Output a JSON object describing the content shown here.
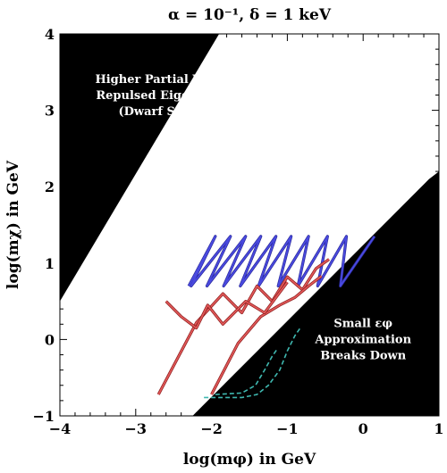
{
  "chart_data": {
    "type": "line",
    "title": "α = 10⁻¹,  δ = 1 keV",
    "xlabel": "log(mφ) in GeV",
    "ylabel": "log(mχ) in GeV",
    "xlim": [
      -4,
      1
    ],
    "ylim": [
      -1,
      4
    ],
    "xticks": [
      -4,
      -3,
      -2,
      -1,
      0,
      1
    ],
    "yticks": [
      -1,
      0,
      1,
      2,
      3,
      4
    ],
    "xtick_labels": [
      "−4",
      "−3",
      "−2",
      "−1",
      "0",
      "1"
    ],
    "ytick_labels": [
      "−1",
      "0",
      "1",
      "2",
      "3",
      "4"
    ],
    "grid": false,
    "colors": {
      "excluded_region": "#000000",
      "blue_series": "#4a4ae0",
      "blue_dark": "#2a2a9a",
      "red_series": "#e05858",
      "red_dark": "#8a1a1a",
      "cyan_series": "#3fb8b0"
    },
    "regions": [
      {
        "name": "upper-left-excluded",
        "fill": "#000000",
        "polygon": [
          [
            -4,
            4
          ],
          [
            -1.9,
            4
          ],
          [
            -4,
            0.5
          ]
        ],
        "label_lines": [
          "Higher Partial Waves,",
          "Repulsed Eigenstates",
          "(Dwarf Scales)"
        ],
        "label_color": "#ffffff"
      },
      {
        "name": "lower-right-excluded",
        "fill": "#000000",
        "polygon": [
          [
            -2.25,
            -1
          ],
          [
            0.87,
            2.1
          ],
          [
            1,
            2.2
          ],
          [
            1,
            -1
          ]
        ],
        "label_lines": [
          "Small εφ",
          "Approximation",
          "Breaks Down"
        ],
        "label_color": "#ffffff"
      }
    ],
    "series": [
      {
        "color": "#4a4ae0",
        "dark_color": "#2a2a9a",
        "x": [
          -2.3,
          -1.95,
          -2.27,
          -1.75,
          -2.06,
          -1.55,
          -1.84,
          -1.35,
          -1.62,
          -1.15,
          -1.38,
          -0.95,
          -1.12,
          -0.72,
          -0.86,
          -0.47,
          -0.6,
          -0.22,
          -0.3,
          0.15
        ],
        "y": [
          0.7,
          1.35,
          0.7,
          1.35,
          0.7,
          1.35,
          0.7,
          1.35,
          0.7,
          1.35,
          0.7,
          1.35,
          0.7,
          1.35,
          0.7,
          1.35,
          0.7,
          1.35,
          0.7,
          1.35
        ]
      },
      {
        "color": "#e05858",
        "dark_color": "#8a1a1a",
        "x": [
          -2.7,
          -2.2,
          -1.85,
          -1.6,
          -1.4,
          -1.2,
          -1.0,
          -0.8,
          -0.62,
          -0.45
        ],
        "y": [
          -0.72,
          0.22,
          0.6,
          0.35,
          0.7,
          0.5,
          0.82,
          0.65,
          0.93,
          1.05
        ]
      },
      {
        "color": "#e05858",
        "dark_color": "#8a1a1a",
        "x": [
          -2.0,
          -1.65,
          -1.35,
          -1.1,
          -0.9,
          -0.72,
          -0.55
        ],
        "y": [
          -0.72,
          -0.05,
          0.3,
          0.45,
          0.55,
          0.7,
          0.83
        ]
      },
      {
        "color": "#e05858",
        "dark_color": "#8a1a1a",
        "x": [
          -2.6,
          -2.4,
          -2.2,
          -2.05,
          -1.85,
          -1.55,
          -1.3,
          -1.0
        ],
        "y": [
          0.5,
          0.3,
          0.15,
          0.45,
          0.2,
          0.5,
          0.35,
          0.75
        ]
      },
      {
        "color": "#3fb8b0",
        "dashed": true,
        "x": [
          -2.1,
          -1.6,
          -1.4,
          -1.25,
          -1.1,
          -1.0,
          -0.9,
          -0.83
        ],
        "y": [
          -0.76,
          -0.76,
          -0.72,
          -0.6,
          -0.4,
          -0.15,
          0.05,
          0.15
        ]
      },
      {
        "color": "#3fb8b0",
        "dashed": true,
        "x": [
          -1.95,
          -1.6,
          -1.42,
          -1.3,
          -1.2,
          -1.13
        ],
        "y": [
          -0.72,
          -0.7,
          -0.6,
          -0.4,
          -0.22,
          -0.12
        ]
      }
    ]
  }
}
